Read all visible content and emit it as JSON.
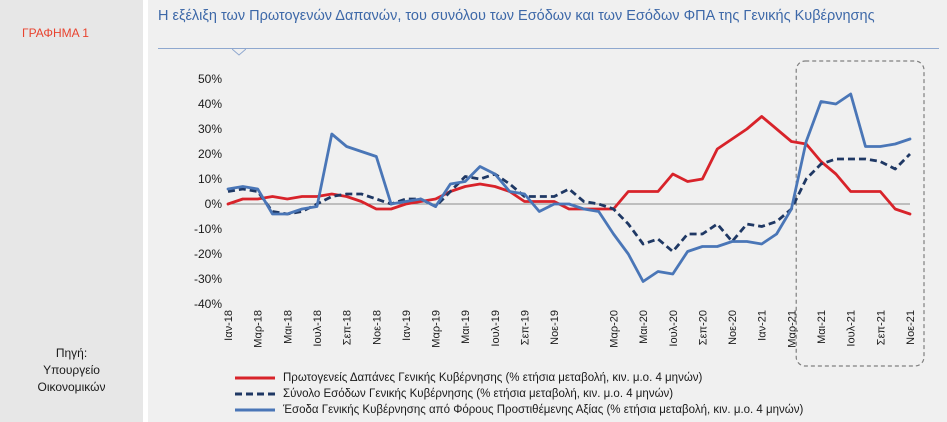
{
  "figure_label": "ΓΡΑΦΗΜΑ 1",
  "source_label": "Πηγή:",
  "source_line1": "Υπουργείο",
  "source_line2": "Οικονομικών",
  "colors": {
    "series_red": "#d8232a",
    "series_navy": "#1f3864",
    "series_blue": "#4a76b7",
    "accent": "#e8432f"
  },
  "chart_data": {
    "type": "line",
    "title": "Η εξέλιξη των Πρωτογενών Δαπανών, του συνόλου των Εσόδων και των Εσόδων ΦΠΑ της Γενικής Κυβέρνησης",
    "xlabel": "",
    "ylabel": "",
    "ylim": [
      -40,
      50
    ],
    "y_ticks": [
      -40,
      -30,
      -20,
      -10,
      0,
      10,
      20,
      30,
      40,
      50
    ],
    "y_tick_labels": [
      "-40%",
      "-30%",
      "-20%",
      "-10%",
      "0%",
      "10%",
      "20%",
      "30%",
      "40%",
      "50%"
    ],
    "x": [
      "Ιαν-18",
      "Φεβ-18",
      "Μαρ-18",
      "Απρ-18",
      "Μαϊ-18",
      "Ιουν-18",
      "Ιουλ-18",
      "Αυγ-18",
      "Σεπ-18",
      "Οκτ-18",
      "Νοε-18",
      "Δεκ-18",
      "Ιαν-19",
      "Φεβ-19",
      "Μαρ-19",
      "Απρ-19",
      "Μαϊ-19",
      "Ιουν-19",
      "Ιουλ-19",
      "Αυγ-19",
      "Σεπ-19",
      "Οκτ-19",
      "Νοε-19",
      "Δεκ-19",
      "Ιαν-20",
      "Φεβ-20",
      "Μαρ-20",
      "Απρ-20",
      "Μαϊ-20",
      "Ιουν-20",
      "Ιουλ-20",
      "Αυγ-20",
      "Σεπ-20",
      "Οκτ-20",
      "Νοε-20",
      "Δεκ-20",
      "Ιαν-21",
      "Φεβ-21",
      "Μαρ-21",
      "Απρ-21",
      "Μαϊ-21",
      "Ιουν-21",
      "Ιουλ-21",
      "Αυγ-21",
      "Σεπ-21",
      "Οκτ-21",
      "Νοε-21"
    ],
    "x_tick_labels": [
      "Ιαν-18",
      "Μαρ-18",
      "Μαι-18",
      "Ιουλ-18",
      "Σεπ-18",
      "Νοε-18",
      "Ιαν-19",
      "Μαρ-19",
      "Μαι-19",
      "Ιουλ-19",
      "Σεπ-19",
      "Νοε-19",
      "Μαρ-20",
      "Μαι-20",
      "Ιουλ-20",
      "Σεπ-20",
      "Νοε-20",
      "Ιαν-21",
      "Μαρ-21",
      "Μαι-21",
      "Ιουλ-21",
      "Σεπ-21",
      "Νοε-21"
    ],
    "x_tick_months": [
      "Ιαν-18",
      "Μαρ-18",
      "Μαϊ-18",
      "Ιουλ-18",
      "Σεπ-18",
      "Νοε-18",
      "Ιαν-19",
      "Μαρ-19",
      "Μαϊ-19",
      "Ιουλ-19",
      "Σεπ-19",
      "Νοε-19",
      "Μαρ-20",
      "Μαϊ-20",
      "Ιουλ-20",
      "Σεπ-20",
      "Νοε-20",
      "Ιαν-21",
      "Μαρ-21",
      "Μαϊ-21",
      "Ιουλ-21",
      "Σεπ-21",
      "Νοε-21"
    ],
    "highlight": {
      "from": "Απρ-21",
      "to": "Νοε-21",
      "style": "dashed rounded box"
    },
    "series": [
      {
        "name": "Πρωτογενείς Δαπάνες Γενικής Κυβέρνησης (% ετήσια μεταβολή, κιν. μ.ο. 4 μηνών)",
        "color": "#d8232a",
        "style": "solid",
        "values": [
          0,
          2,
          2,
          3,
          2,
          3,
          3,
          4,
          3,
          1,
          -2,
          -2,
          0,
          1,
          2,
          5,
          7,
          8,
          7,
          5,
          1,
          1,
          1,
          -2,
          -2,
          -2,
          -2,
          5,
          5,
          5,
          12,
          9,
          10,
          22,
          26,
          30,
          35,
          30,
          25,
          24,
          17,
          12,
          5,
          5,
          5,
          -2,
          -4
        ]
      },
      {
        "name": "Σύνολο Εσόδων Γενικής Κυβέρνησης (% ετήσια μεταβολή, κιν. μ.ο. 4 μηνών)",
        "color": "#1f3864",
        "style": "dashed",
        "values": [
          5,
          6,
          5,
          -3,
          -4,
          -3,
          0,
          3,
          4,
          4,
          2,
          0,
          2,
          2,
          -1,
          5,
          11,
          10,
          12,
          8,
          3,
          3,
          3,
          6,
          1,
          0,
          -2,
          -8,
          -16,
          -14,
          -19,
          -12,
          -12,
          -8,
          -15,
          -8,
          -9,
          -7,
          -2,
          10,
          16,
          18,
          18,
          18,
          17,
          14,
          20
        ]
      },
      {
        "name": "Έσοδα Γενικής Κυβέρνησης από Φόρους Προστιθέμενης Αξίας (% ετήσια μεταβολή, κιν. μ.ο. 4 μηνών)",
        "color": "#4a76b7",
        "style": "solid",
        "values": [
          6,
          7,
          6,
          -4,
          -4,
          -2,
          -1,
          28,
          23,
          21,
          19,
          0,
          1,
          2,
          -1,
          8,
          9,
          15,
          12,
          5,
          4,
          -3,
          0,
          0,
          -2,
          -3,
          -12,
          -20,
          -31,
          -27,
          -28,
          -19,
          -17,
          -17,
          -15,
          -15,
          -16,
          -12,
          -2,
          25,
          41,
          40,
          44,
          23,
          23,
          24,
          26
        ]
      }
    ]
  }
}
